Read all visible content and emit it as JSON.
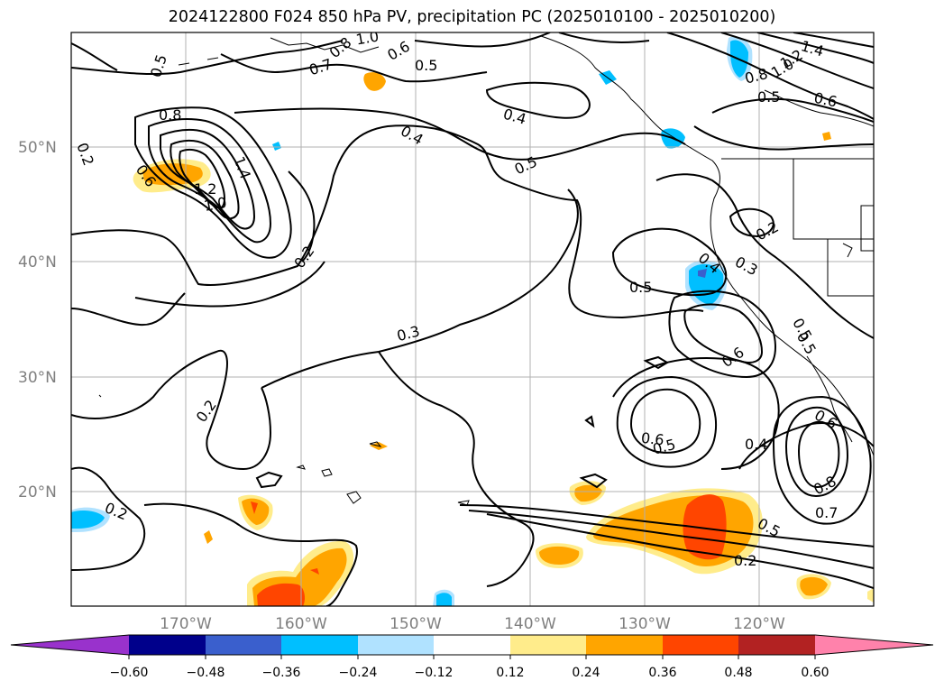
{
  "title": "2024122800 F024 850 hPa PV, precipitation PC (2025010100 - 2025010200)",
  "lon_ticks": [
    "170°W",
    "160°W",
    "150°W",
    "140°W",
    "130°W",
    "120°W"
  ],
  "lat_ticks": [
    "50°N",
    "40°N",
    "30°N",
    "20°N"
  ],
  "colorbar": {
    "tick_labels": [
      "−0.60",
      "−0.48",
      "−0.36",
      "−0.24",
      "−0.12",
      "0.12",
      "0.24",
      "0.36",
      "0.48",
      "0.60"
    ],
    "colors": [
      "#9932cc",
      "#00008b",
      "#3a5fcd",
      "#00bfff",
      "#b0e2ff",
      "#ffffff",
      "#ffec8b",
      "#ffa500",
      "#ff4500",
      "#b22222",
      "#ff82ab"
    ]
  },
  "contour_labels": [
    "0.5",
    "0.7",
    "0.8",
    "1.0",
    "0.6",
    "0.5",
    "1.4",
    "1.2",
    "1.0",
    "0.8",
    "0.5",
    "0.6",
    "0.8",
    "0.2",
    "0.6",
    "1.4",
    "1.2",
    "1.0",
    "0.4",
    "0.4",
    "0.5",
    "0.2",
    "0.2",
    "0.4",
    "0.3",
    "0.5",
    "0.5",
    "0.3",
    "0.6",
    "0.5",
    "0.2",
    "0.6",
    "0.5",
    "0.4",
    "0.6",
    "0.8",
    "0.7",
    "0.5",
    "0.2",
    "0.2"
  ]
}
